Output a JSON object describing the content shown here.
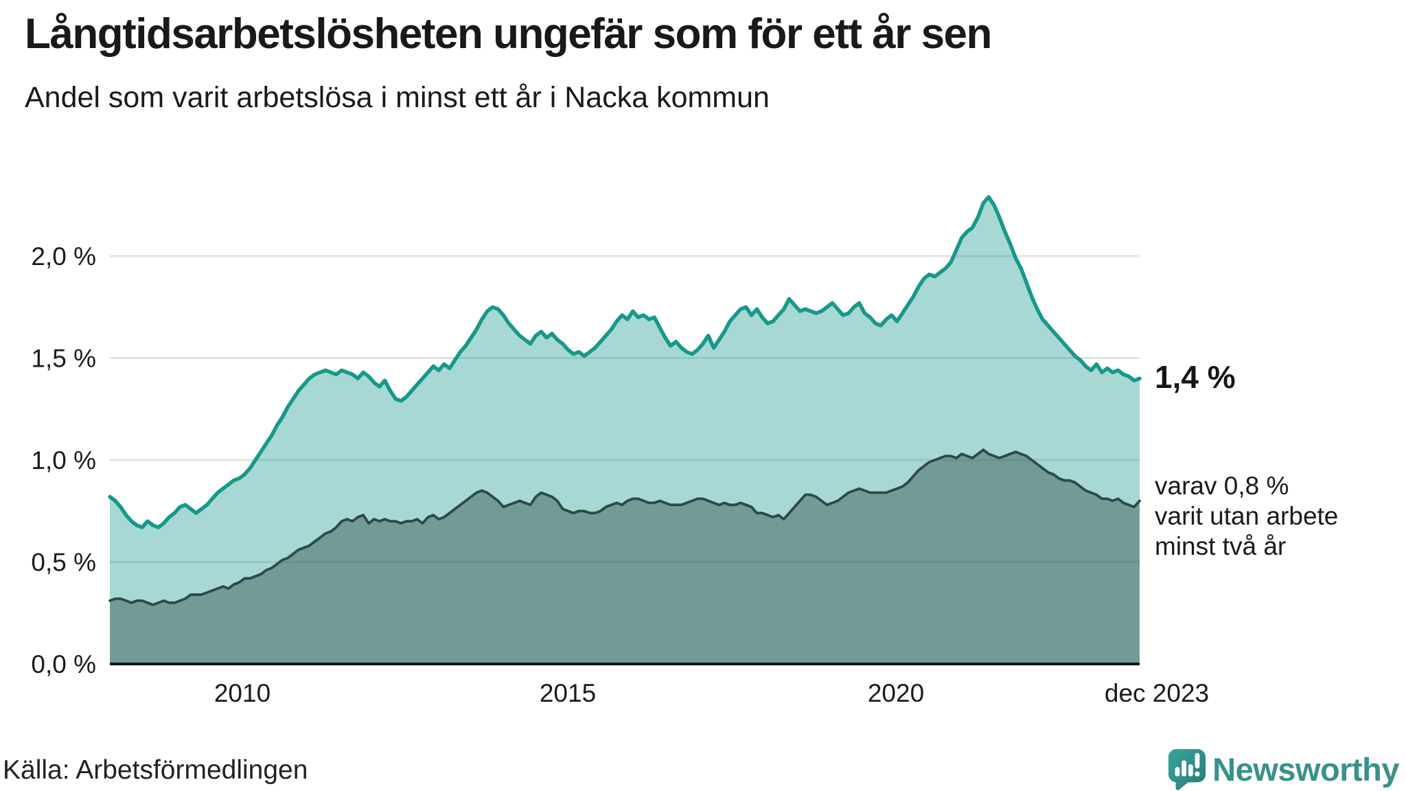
{
  "title": "Långtidsarbetslösheten ungefär som för ett år sen",
  "subtitle": "Andel som varit arbetslösa i minst ett år i Nacka kommun",
  "source": "Källa: Arbetsförmedlingen",
  "branding": {
    "wordmark": "Newsworthy",
    "icon": "newsworthy-speech-bubble-bar-chart-icon",
    "brand_color": "#39918b"
  },
  "annotations": {
    "latest_total": "1,4 %",
    "secondary": [
      "varav 0,8 %",
      "varit utan arbete",
      "minst två år"
    ]
  },
  "axes": {
    "y_ticks": [
      "2,0 %",
      "1,5 %",
      "1,0 %",
      "0,5 %",
      "0,0 %"
    ],
    "y_tick_values": [
      2.0,
      1.5,
      1.0,
      0.5,
      0.0
    ],
    "x_ticks": [
      "2010",
      "2015",
      "2020",
      "dec 2023"
    ]
  },
  "colors": {
    "accent_teal": "#18988b",
    "light_fill": "rgba(24,152,139,0.38)",
    "dark_line": "#2d4a44",
    "dark_fill": "rgba(43,72,65,0.42)",
    "grid": "#e3e3e3",
    "baseline": "#151515",
    "text": "#1a1a1a"
  },
  "chart_data": {
    "type": "area",
    "title": "Långtidsarbetslösheten ungefär som för ett år sen",
    "subtitle": "Andel som varit arbetslösa i minst ett år i Nacka kommun",
    "unit": "%",
    "frequency": "monthly",
    "x_start": "jan 2008",
    "x_end": "dec 2023",
    "x_tick_labels": [
      "2010",
      "2015",
      "2020",
      "dec 2023"
    ],
    "ylim": [
      0,
      2.35
    ],
    "grid": true,
    "legend": "inline-annotations",
    "series": [
      {
        "name": "Andel arbetslösa minst ett år",
        "line_color": "#18988b",
        "fill_color": "rgba(24,152,139,0.38)",
        "last_value_label": "1,4 %",
        "values": [
          0.82,
          0.8,
          0.77,
          0.73,
          0.7,
          0.68,
          0.67,
          0.7,
          0.68,
          0.67,
          0.69,
          0.72,
          0.74,
          0.77,
          0.78,
          0.76,
          0.74,
          0.76,
          0.78,
          0.81,
          0.84,
          0.86,
          0.88,
          0.9,
          0.91,
          0.93,
          0.96,
          1.0,
          1.04,
          1.08,
          1.12,
          1.17,
          1.21,
          1.26,
          1.3,
          1.34,
          1.37,
          1.4,
          1.42,
          1.43,
          1.44,
          1.43,
          1.42,
          1.44,
          1.43,
          1.42,
          1.4,
          1.43,
          1.41,
          1.38,
          1.36,
          1.39,
          1.34,
          1.3,
          1.29,
          1.31,
          1.34,
          1.37,
          1.4,
          1.43,
          1.46,
          1.44,
          1.47,
          1.45,
          1.49,
          1.53,
          1.56,
          1.6,
          1.64,
          1.69,
          1.73,
          1.75,
          1.74,
          1.71,
          1.67,
          1.64,
          1.61,
          1.59,
          1.57,
          1.61,
          1.63,
          1.6,
          1.62,
          1.59,
          1.57,
          1.54,
          1.52,
          1.53,
          1.51,
          1.53,
          1.55,
          1.58,
          1.61,
          1.64,
          1.68,
          1.71,
          1.69,
          1.73,
          1.7,
          1.71,
          1.69,
          1.7,
          1.65,
          1.6,
          1.56,
          1.58,
          1.55,
          1.53,
          1.52,
          1.54,
          1.57,
          1.61,
          1.55,
          1.59,
          1.63,
          1.68,
          1.71,
          1.74,
          1.75,
          1.71,
          1.74,
          1.7,
          1.67,
          1.68,
          1.71,
          1.74,
          1.79,
          1.76,
          1.73,
          1.74,
          1.73,
          1.72,
          1.73,
          1.75,
          1.77,
          1.74,
          1.71,
          1.72,
          1.75,
          1.77,
          1.72,
          1.7,
          1.67,
          1.66,
          1.69,
          1.71,
          1.68,
          1.72,
          1.76,
          1.8,
          1.85,
          1.89,
          1.91,
          1.9,
          1.92,
          1.94,
          1.97,
          2.03,
          2.09,
          2.12,
          2.14,
          2.19,
          2.26,
          2.29,
          2.25,
          2.19,
          2.12,
          2.06,
          1.99,
          1.94,
          1.87,
          1.8,
          1.74,
          1.69,
          1.66,
          1.63,
          1.6,
          1.57,
          1.54,
          1.51,
          1.49,
          1.46,
          1.44,
          1.47,
          1.43,
          1.45,
          1.43,
          1.44,
          1.42,
          1.41,
          1.39,
          1.4
        ]
      },
      {
        "name": "varav arbetslösa minst två år",
        "line_color": "#2d4a44",
        "fill_color": "rgba(43,72,65,0.42)",
        "last_value_label": "0,8 %",
        "values": [
          0.31,
          0.32,
          0.32,
          0.31,
          0.3,
          0.31,
          0.31,
          0.3,
          0.29,
          0.3,
          0.31,
          0.3,
          0.3,
          0.31,
          0.32,
          0.34,
          0.34,
          0.34,
          0.35,
          0.36,
          0.37,
          0.38,
          0.37,
          0.39,
          0.4,
          0.42,
          0.42,
          0.43,
          0.44,
          0.46,
          0.47,
          0.49,
          0.51,
          0.52,
          0.54,
          0.56,
          0.57,
          0.58,
          0.6,
          0.62,
          0.64,
          0.65,
          0.67,
          0.7,
          0.71,
          0.7,
          0.72,
          0.73,
          0.69,
          0.71,
          0.7,
          0.71,
          0.7,
          0.7,
          0.69,
          0.7,
          0.7,
          0.71,
          0.69,
          0.72,
          0.73,
          0.71,
          0.72,
          0.74,
          0.76,
          0.78,
          0.8,
          0.82,
          0.84,
          0.85,
          0.84,
          0.82,
          0.8,
          0.77,
          0.78,
          0.79,
          0.8,
          0.79,
          0.78,
          0.82,
          0.84,
          0.83,
          0.82,
          0.8,
          0.76,
          0.75,
          0.74,
          0.75,
          0.75,
          0.74,
          0.74,
          0.75,
          0.77,
          0.78,
          0.79,
          0.78,
          0.8,
          0.81,
          0.81,
          0.8,
          0.79,
          0.79,
          0.8,
          0.79,
          0.78,
          0.78,
          0.78,
          0.79,
          0.8,
          0.81,
          0.81,
          0.8,
          0.79,
          0.78,
          0.79,
          0.78,
          0.78,
          0.79,
          0.78,
          0.77,
          0.74,
          0.74,
          0.73,
          0.72,
          0.73,
          0.71,
          0.74,
          0.77,
          0.8,
          0.83,
          0.83,
          0.82,
          0.8,
          0.78,
          0.79,
          0.8,
          0.82,
          0.84,
          0.85,
          0.86,
          0.85,
          0.84,
          0.84,
          0.84,
          0.84,
          0.85,
          0.86,
          0.87,
          0.89,
          0.92,
          0.95,
          0.97,
          0.99,
          1.0,
          1.01,
          1.02,
          1.02,
          1.01,
          1.03,
          1.02,
          1.01,
          1.03,
          1.05,
          1.03,
          1.02,
          1.01,
          1.02,
          1.03,
          1.04,
          1.03,
          1.02,
          1.0,
          0.98,
          0.96,
          0.94,
          0.93,
          0.91,
          0.9,
          0.9,
          0.89,
          0.87,
          0.85,
          0.84,
          0.83,
          0.81,
          0.81,
          0.8,
          0.81,
          0.79,
          0.78,
          0.77,
          0.8
        ]
      }
    ]
  }
}
